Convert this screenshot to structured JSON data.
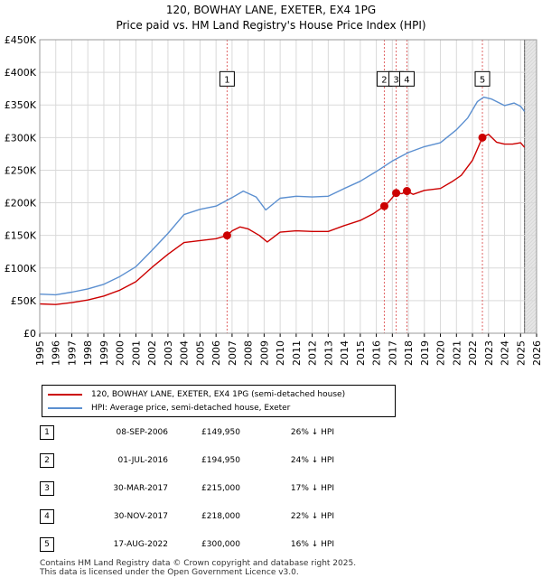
{
  "chart_data": {
    "type": "line",
    "title": "120, BOWHAY LANE, EXETER, EX4 1PG",
    "subtitle": "Price paid vs. HM Land Registry's House Price Index (HPI)",
    "xlabel": "",
    "ylabel": "",
    "xlim": [
      1995,
      2026
    ],
    "ylim": [
      0,
      450000
    ],
    "x_ticks": [
      "1995",
      "1996",
      "1997",
      "1998",
      "1999",
      "2000",
      "2001",
      "2002",
      "2003",
      "2004",
      "2005",
      "2006",
      "2007",
      "2008",
      "2009",
      "2010",
      "2011",
      "2012",
      "2013",
      "2014",
      "2015",
      "2016",
      "2017",
      "2018",
      "2019",
      "2020",
      "2021",
      "2022",
      "2023",
      "2024",
      "2025",
      "2026"
    ],
    "y_ticks": [
      {
        "value": 0,
        "label": "£0"
      },
      {
        "value": 50000,
        "label": "£50K"
      },
      {
        "value": 100000,
        "label": "£100K"
      },
      {
        "value": 150000,
        "label": "£150K"
      },
      {
        "value": 200000,
        "label": "£200K"
      },
      {
        "value": 250000,
        "label": "£250K"
      },
      {
        "value": 300000,
        "label": "£300K"
      },
      {
        "value": 350000,
        "label": "£350K"
      },
      {
        "value": 400000,
        "label": "£400K"
      },
      {
        "value": 450000,
        "label": "£450K"
      }
    ],
    "grid": true,
    "series": [
      {
        "name": "120, BOWHAY LANE, EXETER, EX4 1PG (semi-detached house)",
        "color": "#cc0000",
        "points": [
          [
            1995.0,
            45000
          ],
          [
            1996.0,
            44000
          ],
          [
            1997.0,
            47000
          ],
          [
            1998.0,
            51000
          ],
          [
            1999.0,
            57000
          ],
          [
            2000.0,
            66000
          ],
          [
            2001.0,
            79000
          ],
          [
            2002.0,
            101000
          ],
          [
            2003.0,
            121000
          ],
          [
            2004.0,
            139000
          ],
          [
            2005.0,
            142000
          ],
          [
            2006.0,
            145000
          ],
          [
            2006.69,
            149950
          ],
          [
            2007.0,
            157000
          ],
          [
            2007.5,
            163000
          ],
          [
            2008.0,
            160000
          ],
          [
            2008.7,
            150000
          ],
          [
            2009.2,
            140000
          ],
          [
            2010.0,
            155000
          ],
          [
            2011.0,
            157000
          ],
          [
            2012.0,
            156000
          ],
          [
            2013.0,
            156000
          ],
          [
            2014.0,
            165000
          ],
          [
            2015.0,
            173000
          ],
          [
            2015.8,
            183000
          ],
          [
            2016.5,
            194950
          ],
          [
            2016.8,
            202000
          ],
          [
            2017.24,
            215000
          ],
          [
            2017.6,
            214000
          ],
          [
            2017.91,
            218000
          ],
          [
            2018.3,
            213000
          ],
          [
            2019.0,
            219000
          ],
          [
            2020.0,
            222000
          ],
          [
            2020.7,
            232000
          ],
          [
            2021.3,
            242000
          ],
          [
            2022.0,
            265000
          ],
          [
            2022.3,
            282000
          ],
          [
            2022.62,
            300000
          ],
          [
            2023.0,
            305000
          ],
          [
            2023.5,
            293000
          ],
          [
            2024.0,
            290000
          ],
          [
            2024.5,
            290000
          ],
          [
            2025.0,
            292000
          ],
          [
            2025.25,
            285000
          ]
        ]
      },
      {
        "name": "HPI: Average price, semi-detached house, Exeter",
        "color": "#5b8fd0",
        "points": [
          [
            1995.0,
            60000
          ],
          [
            1996.0,
            59000
          ],
          [
            1997.0,
            63000
          ],
          [
            1998.0,
            68000
          ],
          [
            1999.0,
            75000
          ],
          [
            2000.0,
            87000
          ],
          [
            2001.0,
            102000
          ],
          [
            2002.0,
            127000
          ],
          [
            2003.0,
            153000
          ],
          [
            2004.0,
            182000
          ],
          [
            2005.0,
            190000
          ],
          [
            2006.0,
            195000
          ],
          [
            2007.0,
            208000
          ],
          [
            2007.7,
            218000
          ],
          [
            2008.5,
            209000
          ],
          [
            2009.1,
            189000
          ],
          [
            2010.0,
            207000
          ],
          [
            2011.0,
            210000
          ],
          [
            2012.0,
            209000
          ],
          [
            2013.0,
            210000
          ],
          [
            2014.0,
            222000
          ],
          [
            2015.0,
            233000
          ],
          [
            2016.0,
            248000
          ],
          [
            2017.0,
            264000
          ],
          [
            2018.0,
            277000
          ],
          [
            2019.0,
            286000
          ],
          [
            2020.0,
            292000
          ],
          [
            2021.0,
            312000
          ],
          [
            2021.7,
            330000
          ],
          [
            2022.3,
            355000
          ],
          [
            2022.7,
            362000
          ],
          [
            2023.2,
            359000
          ],
          [
            2024.0,
            349000
          ],
          [
            2024.6,
            353000
          ],
          [
            2025.0,
            348000
          ],
          [
            2025.25,
            340000
          ]
        ]
      }
    ],
    "sales": [
      {
        "n": "1",
        "x": 2006.69,
        "price": 149950
      },
      {
        "n": "2",
        "x": 2016.5,
        "price": 194950
      },
      {
        "n": "3",
        "x": 2017.24,
        "price": 215000
      },
      {
        "n": "4",
        "x": 2017.91,
        "price": 218000
      },
      {
        "n": "5",
        "x": 2022.62,
        "price": 300000
      }
    ],
    "marker_label_y": 390000,
    "shade_from": 2025.25
  },
  "legend": {
    "red_label": "120, BOWHAY LANE, EXETER, EX4 1PG (semi-detached house)",
    "blue_label": "HPI: Average price, semi-detached house, Exeter",
    "red_color": "#cc0000",
    "blue_color": "#5b8fd0"
  },
  "sales_table": [
    {
      "n": "1",
      "date": "08-SEP-2006",
      "price": "£149,950",
      "hpi": "26% ↓ HPI"
    },
    {
      "n": "2",
      "date": "01-JUL-2016",
      "price": "£194,950",
      "hpi": "24% ↓ HPI"
    },
    {
      "n": "3",
      "date": "30-MAR-2017",
      "price": "£215,000",
      "hpi": "17% ↓ HPI"
    },
    {
      "n": "4",
      "date": "30-NOV-2017",
      "price": "£218,000",
      "hpi": "22% ↓ HPI"
    },
    {
      "n": "5",
      "date": "17-AUG-2022",
      "price": "£300,000",
      "hpi": "16% ↓ HPI"
    }
  ],
  "footer": {
    "line1": "Contains HM Land Registry data © Crown copyright and database right 2025.",
    "line2": "This data is licensed under the Open Government Licence v3.0."
  }
}
